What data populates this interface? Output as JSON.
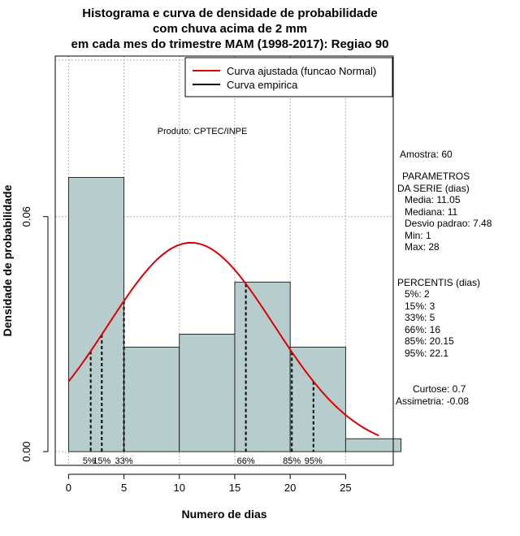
{
  "chart_data": {
    "type": "bar",
    "title_lines": [
      "Histograma e curva de densidade de probabilidade",
      "com chuva acima de 2 mm",
      "em cada mes do trimestre MAM (1998-2017): Regiao 90"
    ],
    "xlabel": "Numero de dias",
    "ylabel": "Densidade de probabilidade",
    "xlim": [
      -1.2,
      29.3
    ],
    "ylim": [
      -0.0035,
      0.101
    ],
    "x_ticks": [
      0,
      5,
      10,
      15,
      20,
      25
    ],
    "y_ticks": [
      0.0,
      0.06
    ],
    "y_tick_labels": [
      "0.00",
      "0.06"
    ],
    "x_gridlines": [
      0,
      5,
      10,
      15,
      20,
      25
    ],
    "y_gridlines": [
      0.0,
      0.06,
      0.1
    ],
    "bins": [
      {
        "start": 0,
        "end": 5,
        "density": 0.07
      },
      {
        "start": 5,
        "end": 10,
        "density": 0.0267
      },
      {
        "start": 10,
        "end": 15,
        "density": 0.03
      },
      {
        "start": 15,
        "end": 20,
        "density": 0.0433
      },
      {
        "start": 20,
        "end": 25,
        "density": 0.0267
      },
      {
        "start": 25,
        "end": 30,
        "density": 0.0033
      }
    ],
    "bar_fill": "#b7cdcd",
    "fitted_curve": {
      "name": "Curva ajustada (funcao Normal)",
      "distribution": "normal",
      "mean": 11.05,
      "sd": 7.48,
      "x_range": [
        0,
        28
      ],
      "color": "#dd0000"
    },
    "empirical_curve": {
      "name": "Curva empirica",
      "color": "#000000"
    },
    "percentile_lines": [
      {
        "x": 2,
        "label": "5%"
      },
      {
        "x": 3,
        "label": "15%"
      },
      {
        "x": 5,
        "label": "33%"
      },
      {
        "x": 16,
        "label": "66%"
      },
      {
        "x": 20.15,
        "label": "85%"
      },
      {
        "x": 22.1,
        "label": "95%"
      }
    ],
    "legend_position": "top-right",
    "annotation": "Produto: CPTEC/INPE",
    "side_panel": [
      "Amostra: 60",
      "PARAMETROS",
      "DA SERIE (dias)",
      "Media: 11.05",
      "Mediana: 11",
      "Desvio padrao: 7.48",
      "Min: 1",
      "Max: 28",
      "PERCENTIS (dias)",
      "5%: 2",
      "15%: 3",
      "33%: 5",
      "66%: 16",
      "85%: 20.15",
      "95%: 22.1",
      "Curtose: 0.7",
      "Assimetria: -0.08"
    ]
  }
}
